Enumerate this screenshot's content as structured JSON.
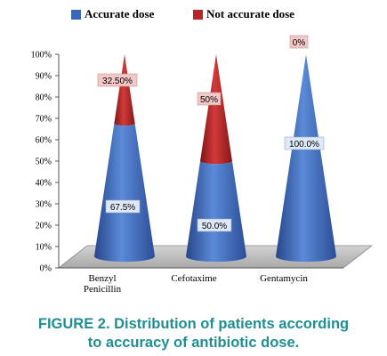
{
  "chart_data": {
    "type": "bar",
    "shape": "3d-cone-stacked-percent",
    "categories": [
      "Benzyl Penicillin",
      "Cefotaxime",
      "Gentamycin"
    ],
    "category_lines": [
      [
        "Benzyl",
        "Penicillin"
      ],
      [
        "Cefotaxime"
      ],
      [
        "Gentamycin"
      ]
    ],
    "series": [
      {
        "name": "Accurate  dose",
        "values": [
          67.5,
          50.0,
          100.0
        ],
        "labels": [
          "67.5%",
          "50.0%",
          "100.0%"
        ],
        "color": "#3a66b8"
      },
      {
        "name": "Not accurate dose",
        "values": [
          32.5,
          50.0,
          0.0
        ],
        "labels": [
          "32.50%",
          "50%",
          "0%"
        ],
        "color": "#b82525"
      }
    ],
    "ylim": [
      0,
      100
    ],
    "yticks": [
      "0%",
      "10%",
      "20%",
      "30%",
      "40%",
      "50%",
      "60%",
      "70%",
      "80%",
      "90%",
      "100%"
    ],
    "legend": "top",
    "grid": false
  },
  "caption": {
    "line1": "FIGURE 2. Distribution of patients according",
    "line2": "to accuracy of antibiotic dose."
  },
  "colors": {
    "caption": "#1f8f91",
    "series_label_box_1": "#dfe8f6",
    "series_label_box_2": "#f2c8c8"
  }
}
